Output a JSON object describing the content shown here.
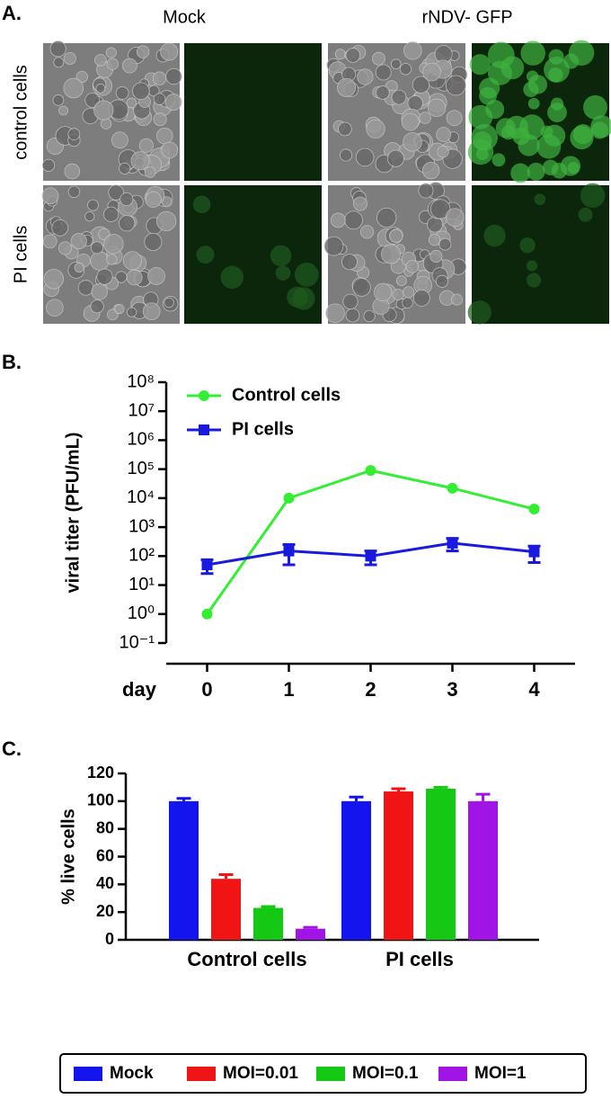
{
  "panel_a": {
    "label": "A.",
    "columns": [
      "Mock",
      "rNDV- GFP"
    ],
    "rows": [
      "control cells",
      "PI cells"
    ]
  },
  "chart_data": [
    {
      "type": "line",
      "panel_label": "B.",
      "y_label": "viral titer (PFU/mL)",
      "x_label": "day",
      "x": [
        0,
        1,
        2,
        3,
        4
      ],
      "xlim": [
        -0.5,
        4.5
      ],
      "xticks": [
        0,
        1,
        2,
        3,
        4
      ],
      "log_y": true,
      "ylim": [
        0.1,
        100000000
      ],
      "yticks": [
        {
          "value": 0.1,
          "label": "10⁻¹"
        },
        {
          "value": 1,
          "label": "10⁰"
        },
        {
          "value": 10,
          "label": "10¹"
        },
        {
          "value": 100,
          "label": "10²"
        },
        {
          "value": 1000,
          "label": "10³"
        },
        {
          "value": 10000,
          "label": "10⁴"
        },
        {
          "value": 100000,
          "label": "10⁵"
        },
        {
          "value": 1000000,
          "label": "10⁶"
        },
        {
          "value": 10000000,
          "label": "10⁷"
        },
        {
          "value": 100000000,
          "label": "10⁸"
        }
      ],
      "legend": "top-left",
      "series": [
        {
          "name": "Control cells",
          "color": "#33ee33",
          "marker": "circle",
          "values": [
            1,
            10000,
            90000,
            22000,
            4200
          ]
        },
        {
          "name": "PI cells",
          "color": "#1a1adf",
          "marker": "square",
          "values": [
            50,
            150,
            100,
            280,
            140
          ],
          "errors": [
            25,
            100,
            50,
            130,
            80
          ]
        }
      ]
    },
    {
      "type": "bar",
      "panel_label": "C.",
      "y_label": "% live cells",
      "categories": [
        "Control cells",
        "PI cells"
      ],
      "ylim": [
        0,
        120
      ],
      "yticks": [
        0,
        20,
        40,
        60,
        80,
        100,
        120
      ],
      "legend": "bottom",
      "series": [
        {
          "name": "Mock",
          "color": "#1414ee",
          "values": [
            100,
            100
          ],
          "errors": [
            2,
            3
          ]
        },
        {
          "name": "MOI=0.01",
          "color": "#f01414",
          "values": [
            44,
            107
          ],
          "errors": [
            3,
            2
          ]
        },
        {
          "name": "MOI=0.1",
          "color": "#14c814",
          "values": [
            23,
            109
          ],
          "errors": [
            1,
            1
          ]
        },
        {
          "name": "MOI=1",
          "color": "#a014e6",
          "values": [
            8,
            100
          ],
          "errors": [
            1,
            5
          ]
        }
      ]
    }
  ]
}
